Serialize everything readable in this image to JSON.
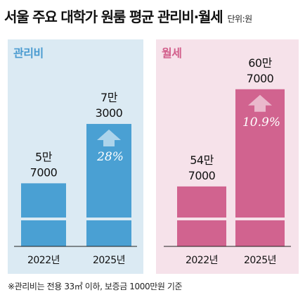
{
  "header": {
    "title": "서울 주요 대학가 원룸 평균 관리비·월세",
    "unit": "단위:원"
  },
  "colors": {
    "blue": "#4aa0d3",
    "blue_panel": "#dbeaf3",
    "pink": "#d1638f",
    "pink_panel": "#f6e2ea"
  },
  "chart_data": [
    {
      "type": "bar",
      "panel_label": "관리비",
      "categories": [
        "2022년",
        "2025년"
      ],
      "values": [
        57000,
        73000
      ],
      "value_labels": [
        [
          "5만",
          "7000"
        ],
        [
          "7만",
          "3000"
        ]
      ],
      "change_label": "28%",
      "y_axis": "truncated (wave break near bottom)"
    },
    {
      "type": "bar",
      "panel_label": "월세",
      "categories": [
        "2022년",
        "2025년"
      ],
      "values": [
        547000,
        607000
      ],
      "value_labels": [
        [
          "54만",
          "7000"
        ],
        [
          "60만",
          "7000"
        ]
      ],
      "change_label": "10.9%",
      "y_axis": "truncated (wave break near bottom)"
    }
  ],
  "footnote": "※관리비는 전용 33㎡ 이하, 보증금 1000만원 기준"
}
